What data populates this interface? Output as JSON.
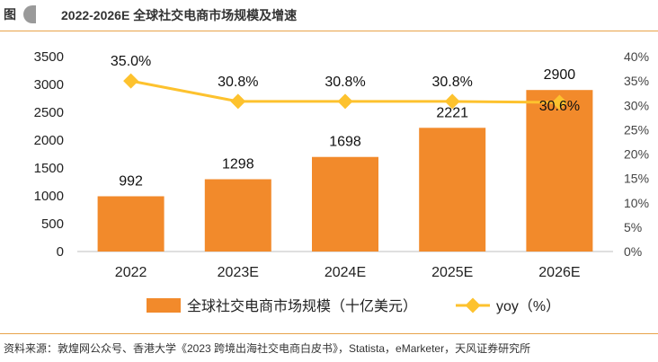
{
  "header": {
    "fig_label": "图",
    "title": "2022-2026E 全球社交电商市场规模及增速"
  },
  "source": "资料来源：敦煌网公众号、香港大学《2023 跨境出海社交电商白皮书》，Statista，eMarketer，天风证券研究所",
  "colors": {
    "bar": "#F28A2B",
    "line": "#FDC22E",
    "accent": "#E8A34A"
  },
  "chart_data": {
    "type": "bar",
    "title": "2022-2026E 全球社交电商市场规模及增速",
    "categories": [
      "2022",
      "2023E",
      "2024E",
      "2025E",
      "2026E"
    ],
    "series": [
      {
        "name": "全球社交电商市场规模（十亿美元）",
        "type": "bar",
        "axis": "left",
        "values": [
          992,
          1298,
          1698,
          2221,
          2900
        ],
        "labels": [
          "992",
          "1298",
          "1698",
          "2221",
          "2900"
        ]
      },
      {
        "name": "yoy（%）",
        "type": "line",
        "axis": "right",
        "values": [
          35.0,
          30.8,
          30.8,
          30.8,
          30.6
        ],
        "labels": [
          "35.0%",
          "30.8%",
          "30.8%",
          "30.8%",
          "30.6%"
        ]
      }
    ],
    "ylim": [
      0,
      3500
    ],
    "y_ticks": [
      "0",
      "500",
      "1000",
      "1500",
      "2000",
      "2500",
      "3000",
      "3500"
    ],
    "y2lim": [
      0,
      40
    ],
    "y2_ticks": [
      "0%",
      "5%",
      "10%",
      "15%",
      "20%",
      "25%",
      "30%",
      "35%",
      "40%"
    ],
    "grid": false,
    "legend_position": "bottom"
  }
}
